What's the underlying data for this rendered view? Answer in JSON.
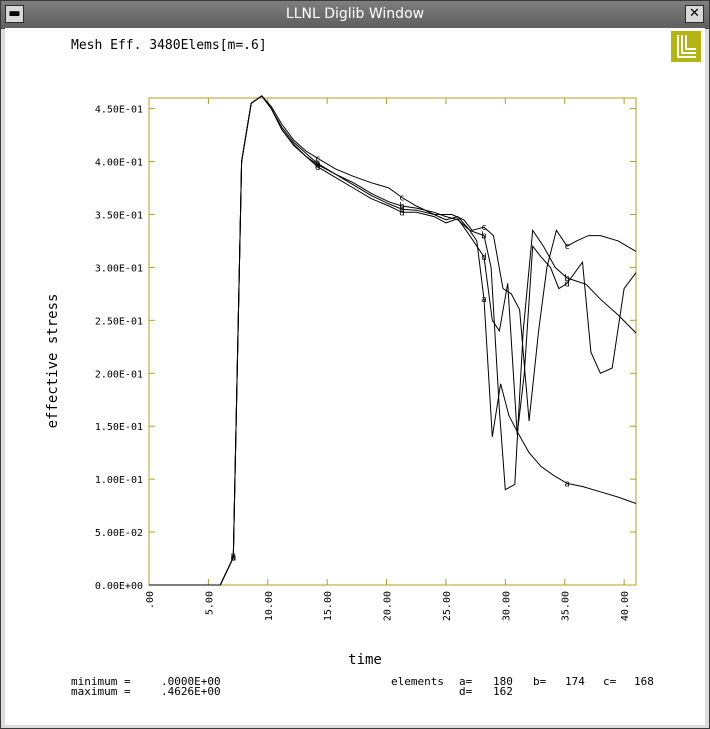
{
  "window": {
    "title": "LLNL Diglib Window",
    "menu_icon": "window-menu-button",
    "close_icon": "close-icon"
  },
  "logo": {
    "color": "#b5b512",
    "icon": "llnl-logo"
  },
  "header": {
    "plot_title": "Mesh Eff. 3480Elems[m=.6]"
  },
  "footer": {
    "minimum_label": "minimum =",
    "minimum_value": ".0000E+00",
    "maximum_label": "maximum =",
    "maximum_value": ".4626E+00",
    "elements_label": "elements",
    "elements": [
      {
        "tag": "a=",
        "value": "180"
      },
      {
        "tag": "b=",
        "value": "174"
      },
      {
        "tag": "c=",
        "value": "168"
      },
      {
        "tag": "d=",
        "value": "162"
      }
    ]
  },
  "chart_data": {
    "type": "line",
    "xlabel": "time",
    "ylabel": "effective stress",
    "xlim": [
      0,
      41
    ],
    "ylim": [
      0,
      0.46
    ],
    "frame_color": "#b0a020",
    "x_ticks": [
      {
        "v": 0,
        "label": ".00"
      },
      {
        "v": 5,
        "label": "5.00"
      },
      {
        "v": 10,
        "label": "10.00"
      },
      {
        "v": 15,
        "label": "15.00"
      },
      {
        "v": 20,
        "label": "20.00"
      },
      {
        "v": 25,
        "label": "25.00"
      },
      {
        "v": 30,
        "label": "30.00"
      },
      {
        "v": 35,
        "label": "35.00"
      },
      {
        "v": 40,
        "label": "40.00"
      }
    ],
    "y_ticks": [
      {
        "v": 0,
        "label": "0.00E+00"
      },
      {
        "v": 0.05,
        "label": "5.00E-02"
      },
      {
        "v": 0.1,
        "label": "1.00E-01"
      },
      {
        "v": 0.15,
        "label": "1.50E-01"
      },
      {
        "v": 0.2,
        "label": "2.00E-01"
      },
      {
        "v": 0.25,
        "label": "2.50E-01"
      },
      {
        "v": 0.3,
        "label": "3.00E-01"
      },
      {
        "v": 0.35,
        "label": "3.50E-01"
      },
      {
        "v": 0.4,
        "label": "4.00E-01"
      },
      {
        "v": 0.45,
        "label": "4.50E-01"
      }
    ],
    "series": [
      {
        "name": "a",
        "markers": [
          7.1,
          14.2,
          21.3,
          28.2,
          35.2
        ],
        "points": [
          [
            0,
            0
          ],
          [
            6,
            0
          ],
          [
            7.1,
            0.026
          ],
          [
            7.8,
            0.4
          ],
          [
            8.6,
            0.455
          ],
          [
            9.5,
            0.462
          ],
          [
            10.3,
            0.45
          ],
          [
            11.2,
            0.43
          ],
          [
            12.2,
            0.415
          ],
          [
            13.2,
            0.405
          ],
          [
            14.2,
            0.397
          ],
          [
            15.7,
            0.388
          ],
          [
            17.2,
            0.378
          ],
          [
            18.7,
            0.368
          ],
          [
            20.2,
            0.36
          ],
          [
            21.3,
            0.355
          ],
          [
            22.5,
            0.354
          ],
          [
            24,
            0.35
          ],
          [
            25,
            0.345
          ],
          [
            26,
            0.348
          ],
          [
            27,
            0.335
          ],
          [
            27.6,
            0.325
          ],
          [
            28.2,
            0.27
          ],
          [
            28.9,
            0.14
          ],
          [
            29.6,
            0.19
          ],
          [
            30.3,
            0.16
          ],
          [
            31,
            0.145
          ],
          [
            32,
            0.125
          ],
          [
            33,
            0.112
          ],
          [
            34,
            0.104
          ],
          [
            35.2,
            0.096
          ],
          [
            36.5,
            0.093
          ],
          [
            38,
            0.088
          ],
          [
            39.5,
            0.083
          ],
          [
            41,
            0.077
          ]
        ]
      },
      {
        "name": "b",
        "markers": [
          7.1,
          14.2,
          21.3,
          28.2,
          35.2
        ],
        "points": [
          [
            0,
            0
          ],
          [
            6,
            0
          ],
          [
            7.1,
            0.026
          ],
          [
            7.8,
            0.4
          ],
          [
            8.6,
            0.455
          ],
          [
            9.5,
            0.462
          ],
          [
            10.3,
            0.45
          ],
          [
            11.2,
            0.432
          ],
          [
            12.2,
            0.418
          ],
          [
            13.2,
            0.408
          ],
          [
            14.2,
            0.398
          ],
          [
            15.7,
            0.388
          ],
          [
            17.2,
            0.38
          ],
          [
            18.7,
            0.37
          ],
          [
            20.2,
            0.362
          ],
          [
            21.3,
            0.358
          ],
          [
            22.5,
            0.356
          ],
          [
            24,
            0.352
          ],
          [
            25,
            0.348
          ],
          [
            26,
            0.345
          ],
          [
            27,
            0.335
          ],
          [
            28.2,
            0.33
          ],
          [
            28.8,
            0.3
          ],
          [
            29.5,
            0.165
          ],
          [
            30,
            0.09
          ],
          [
            30.8,
            0.095
          ],
          [
            31.5,
            0.24
          ],
          [
            32.3,
            0.335
          ],
          [
            33.2,
            0.32
          ],
          [
            34.2,
            0.3
          ],
          [
            35.2,
            0.29
          ],
          [
            36.8,
            0.284
          ],
          [
            38,
            0.27
          ],
          [
            39.5,
            0.255
          ],
          [
            41,
            0.238
          ]
        ]
      },
      {
        "name": "c",
        "markers": [
          14.2,
          21.3,
          28.2,
          35.2
        ],
        "points": [
          [
            0,
            0
          ],
          [
            6,
            0
          ],
          [
            7.1,
            0.026
          ],
          [
            7.8,
            0.4
          ],
          [
            8.6,
            0.455
          ],
          [
            9.5,
            0.462
          ],
          [
            10.3,
            0.452
          ],
          [
            11.2,
            0.435
          ],
          [
            12.2,
            0.42
          ],
          [
            13.2,
            0.41
          ],
          [
            14.2,
            0.403
          ],
          [
            15.7,
            0.393
          ],
          [
            17.2,
            0.386
          ],
          [
            18.7,
            0.38
          ],
          [
            20.2,
            0.375
          ],
          [
            21.3,
            0.366
          ],
          [
            22.5,
            0.358
          ],
          [
            24,
            0.35
          ],
          [
            25.5,
            0.35
          ],
          [
            26.5,
            0.345
          ],
          [
            27.2,
            0.335
          ],
          [
            28.2,
            0.338
          ],
          [
            29,
            0.33
          ],
          [
            29.8,
            0.28
          ],
          [
            30.5,
            0.275
          ],
          [
            31.2,
            0.26
          ],
          [
            32,
            0.155
          ],
          [
            32.8,
            0.24
          ],
          [
            33.5,
            0.3
          ],
          [
            34.3,
            0.335
          ],
          [
            35.2,
            0.32
          ],
          [
            36,
            0.325
          ],
          [
            37,
            0.33
          ],
          [
            38,
            0.33
          ],
          [
            39.5,
            0.325
          ],
          [
            41,
            0.315
          ]
        ]
      },
      {
        "name": "d",
        "markers": [
          7.1,
          14.2,
          21.3,
          28.2,
          35.2
        ],
        "points": [
          [
            0,
            0
          ],
          [
            6,
            0
          ],
          [
            7.1,
            0.026
          ],
          [
            7.8,
            0.4
          ],
          [
            8.6,
            0.455
          ],
          [
            9.5,
            0.462
          ],
          [
            10.3,
            0.45
          ],
          [
            11.2,
            0.43
          ],
          [
            12.2,
            0.416
          ],
          [
            13.2,
            0.405
          ],
          [
            14.2,
            0.395
          ],
          [
            15.7,
            0.385
          ],
          [
            17.2,
            0.375
          ],
          [
            18.7,
            0.365
          ],
          [
            20.2,
            0.358
          ],
          [
            21.3,
            0.352
          ],
          [
            22.5,
            0.352
          ],
          [
            24,
            0.348
          ],
          [
            25,
            0.342
          ],
          [
            26,
            0.346
          ],
          [
            27,
            0.33
          ],
          [
            28.2,
            0.31
          ],
          [
            28.9,
            0.25
          ],
          [
            29.5,
            0.24
          ],
          [
            30.2,
            0.285
          ],
          [
            31,
            0.142
          ],
          [
            31.6,
            0.2
          ],
          [
            32.3,
            0.32
          ],
          [
            33,
            0.31
          ],
          [
            33.8,
            0.3
          ],
          [
            34.5,
            0.28
          ],
          [
            35.2,
            0.285
          ],
          [
            36.5,
            0.305
          ],
          [
            37.2,
            0.22
          ],
          [
            38,
            0.2
          ],
          [
            39,
            0.205
          ],
          [
            40,
            0.28
          ],
          [
            41,
            0.295
          ]
        ]
      }
    ]
  }
}
